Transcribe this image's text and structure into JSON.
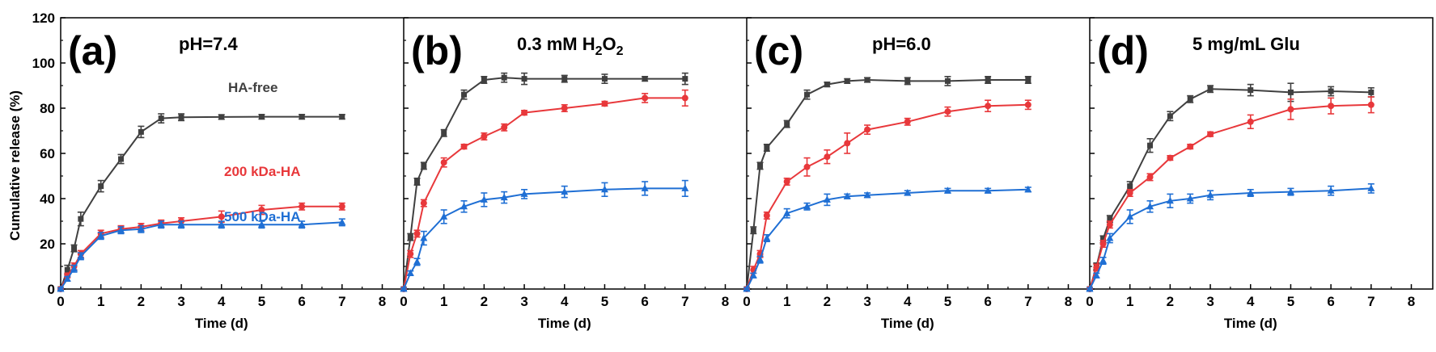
{
  "chart_data": [
    {
      "type": "line",
      "panel": "(a)",
      "title": "pH=7.4",
      "xlabel": "Time (d)",
      "ylabel": "Cumulative release (%)",
      "xlim": [
        0,
        8
      ],
      "ylim": [
        0,
        120
      ],
      "xticks": [
        "0",
        "1",
        "2",
        "3",
        "4",
        "5",
        "6",
        "7",
        "8"
      ],
      "yticks": [
        "0",
        "20",
        "40",
        "60",
        "80",
        "100",
        "120"
      ],
      "series": [
        {
          "name": "HA-free",
          "color": "#404040",
          "marker": "square",
          "x": [
            0,
            0.167,
            0.333,
            0.5,
            1,
            1.5,
            2,
            2.5,
            3,
            4,
            5,
            6,
            7
          ],
          "y": [
            0,
            8.5,
            18,
            31,
            45.5,
            57.5,
            69.5,
            75.5,
            76,
            76.1,
            76.2,
            76.2,
            76.2
          ],
          "err": [
            0.5,
            2,
            1.5,
            3,
            2.5,
            2,
            2.5,
            2,
            1.5,
            1,
            1,
            1,
            1
          ]
        },
        {
          "name": "200 kDa-HA",
          "color": "#e8383b",
          "marker": "circle",
          "x": [
            0,
            0.167,
            0.333,
            0.5,
            1,
            1.5,
            2,
            2.5,
            3,
            4,
            5,
            6,
            7
          ],
          "y": [
            0,
            6,
            10,
            15.5,
            24.5,
            26.5,
            27.5,
            29,
            30,
            32,
            35,
            36.5,
            36.5
          ],
          "err": [
            0.5,
            1,
            1.5,
            1.5,
            1.5,
            1.5,
            1.5,
            1.5,
            1.5,
            2.5,
            2,
            1.5,
            1.5
          ]
        },
        {
          "name": "500 kDa-HA",
          "color": "#1f6fd4",
          "marker": "triangle",
          "x": [
            0,
            0.167,
            0.333,
            0.5,
            1,
            1.5,
            2,
            2.5,
            3,
            4,
            5,
            6,
            7
          ],
          "y": [
            0,
            4.5,
            9,
            14.5,
            23.5,
            26,
            26.5,
            28.5,
            28.5,
            28.5,
            28.5,
            28.5,
            29.5
          ],
          "err": [
            0.5,
            1,
            1.5,
            1.5,
            1.5,
            1.5,
            1.5,
            1.5,
            1.5,
            1.5,
            1.5,
            1.5,
            1.5
          ]
        }
      ],
      "annotations": [
        "HA-free",
        "200 kDa-HA",
        "500 kDa-HA"
      ]
    },
    {
      "type": "line",
      "panel": "(b)",
      "title": "0.3 mM H2O2",
      "title_parts": [
        "0.3 mM H",
        "2",
        "O",
        "2"
      ],
      "xlabel": "Time (d)",
      "xlim": [
        0,
        8
      ],
      "ylim": [
        0,
        120
      ],
      "xticks": [
        "0",
        "1",
        "2",
        "3",
        "4",
        "5",
        "6",
        "7",
        "8"
      ],
      "series": [
        {
          "name": "HA-free",
          "color": "#404040",
          "marker": "square",
          "x": [
            0,
            0.167,
            0.333,
            0.5,
            1,
            1.5,
            2,
            2.5,
            3,
            4,
            5,
            6,
            7
          ],
          "y": [
            0,
            23,
            47.5,
            54.5,
            69,
            86,
            92.5,
            93.5,
            93,
            93,
            93,
            93,
            93
          ],
          "err": [
            0.5,
            1.5,
            1.5,
            1.5,
            1.5,
            2,
            1.5,
            2,
            2.5,
            1.5,
            2,
            1,
            2.5
          ]
        },
        {
          "name": "200 kDa-HA",
          "color": "#e8383b",
          "marker": "circle",
          "x": [
            0,
            0.167,
            0.333,
            0.5,
            1,
            1.5,
            2,
            2.5,
            3,
            4,
            5,
            6,
            7
          ],
          "y": [
            0,
            15.5,
            24.5,
            38,
            56,
            63,
            67.5,
            71.5,
            78,
            80,
            82,
            84.5,
            84.5
          ],
          "err": [
            0.5,
            1.5,
            1.5,
            1.5,
            2,
            1,
            1.5,
            1.5,
            1,
            1.5,
            1,
            2,
            3.5
          ]
        },
        {
          "name": "500 kDa-HA",
          "color": "#1f6fd4",
          "marker": "triangle",
          "x": [
            0,
            0.167,
            0.333,
            0.5,
            1,
            1.5,
            2,
            2.5,
            3,
            4,
            5,
            6,
            7
          ],
          "y": [
            0,
            7,
            12,
            22.5,
            32,
            36.5,
            39.5,
            40.5,
            42,
            43,
            44,
            44.5,
            44.5
          ],
          "err": [
            0.5,
            1,
            1.5,
            3,
            3,
            2.5,
            3,
            2.5,
            2,
            2.5,
            3,
            3,
            3.5
          ]
        }
      ]
    },
    {
      "type": "line",
      "panel": "(c)",
      "title": "pH=6.0",
      "xlabel": "Time (d)",
      "xlim": [
        0,
        8
      ],
      "ylim": [
        0,
        120
      ],
      "xticks": [
        "0",
        "1",
        "2",
        "3",
        "4",
        "5",
        "6",
        "7",
        "8"
      ],
      "series": [
        {
          "name": "HA-free",
          "color": "#404040",
          "marker": "square",
          "x": [
            0,
            0.167,
            0.333,
            0.5,
            1,
            1.5,
            2,
            2.5,
            3,
            4,
            5,
            6,
            7
          ],
          "y": [
            0,
            26,
            54.5,
            62.5,
            73,
            86,
            90.5,
            92,
            92.5,
            92,
            92,
            92.5,
            92.5
          ],
          "err": [
            0.5,
            1.5,
            1.5,
            1.5,
            1.5,
            2,
            1,
            1,
            1,
            1.5,
            2,
            1.5,
            1.5
          ]
        },
        {
          "name": "200 kDa-HA",
          "color": "#e8383b",
          "marker": "circle",
          "x": [
            0,
            0.167,
            0.333,
            0.5,
            1,
            1.5,
            2,
            2.5,
            3,
            4,
            5,
            6,
            7
          ],
          "y": [
            0,
            8.5,
            15.5,
            32.5,
            47.5,
            54,
            58.5,
            64.5,
            70.5,
            74,
            78.5,
            81,
            81.5
          ],
          "err": [
            0.5,
            1.5,
            1.5,
            1.5,
            1.5,
            4,
            3,
            4.5,
            2,
            1.5,
            2,
            2.5,
            2
          ]
        },
        {
          "name": "500 kDa-HA",
          "color": "#1f6fd4",
          "marker": "triangle",
          "x": [
            0,
            0.167,
            0.333,
            0.5,
            1,
            1.5,
            2,
            2.5,
            3,
            4,
            5,
            6,
            7
          ],
          "y": [
            0,
            6,
            13,
            22.5,
            33.5,
            36.5,
            39.5,
            41,
            41.5,
            42.5,
            43.5,
            43.5,
            44
          ],
          "err": [
            0.5,
            1,
            1.5,
            1.5,
            2,
            1.5,
            2.5,
            1,
            1,
            1,
            1,
            1,
            1
          ]
        }
      ]
    },
    {
      "type": "line",
      "panel": "(d)",
      "title": "5 mg/mL Glu",
      "xlabel": "Time (d)",
      "xlim": [
        0,
        8
      ],
      "ylim": [
        0,
        120
      ],
      "xticks": [
        "0",
        "1",
        "2",
        "3",
        "4",
        "5",
        "6",
        "7",
        "8"
      ],
      "series": [
        {
          "name": "HA-free",
          "color": "#404040",
          "marker": "square",
          "x": [
            0,
            0.167,
            0.333,
            0.5,
            1,
            1.5,
            2,
            2.5,
            3,
            4,
            5,
            6,
            7
          ],
          "y": [
            0,
            10,
            22,
            31,
            45.5,
            63.5,
            76.5,
            84,
            88.5,
            88,
            87,
            87.5,
            87
          ],
          "err": [
            0.5,
            1.5,
            1.5,
            1.5,
            2,
            3,
            2,
            1.5,
            1.5,
            2.5,
            4,
            2,
            2
          ]
        },
        {
          "name": "200 kDa-HA",
          "color": "#e8383b",
          "marker": "circle",
          "x": [
            0,
            0.167,
            0.333,
            0.5,
            1,
            1.5,
            2,
            2.5,
            3,
            4,
            5,
            6,
            7
          ],
          "y": [
            0,
            9.5,
            20,
            28.5,
            42.5,
            49.5,
            58,
            63,
            68.5,
            74,
            79.5,
            81,
            81.5
          ],
          "err": [
            0.5,
            1.5,
            1.5,
            1.5,
            1.5,
            1.5,
            1,
            1,
            1,
            3,
            4.5,
            3.5,
            3.5
          ]
        },
        {
          "name": "500 kDa-HA",
          "color": "#1f6fd4",
          "marker": "triangle",
          "x": [
            0,
            0.167,
            0.333,
            0.5,
            1,
            1.5,
            2,
            2.5,
            3,
            4,
            5,
            6,
            7
          ],
          "y": [
            0,
            6,
            12.5,
            22.5,
            32,
            36.5,
            39,
            40,
            41.5,
            42.5,
            43,
            43.5,
            44.5
          ],
          "err": [
            0.5,
            1,
            1.5,
            2,
            3,
            2.5,
            3,
            2,
            2,
            1.5,
            1.5,
            2,
            2
          ]
        }
      ]
    }
  ]
}
